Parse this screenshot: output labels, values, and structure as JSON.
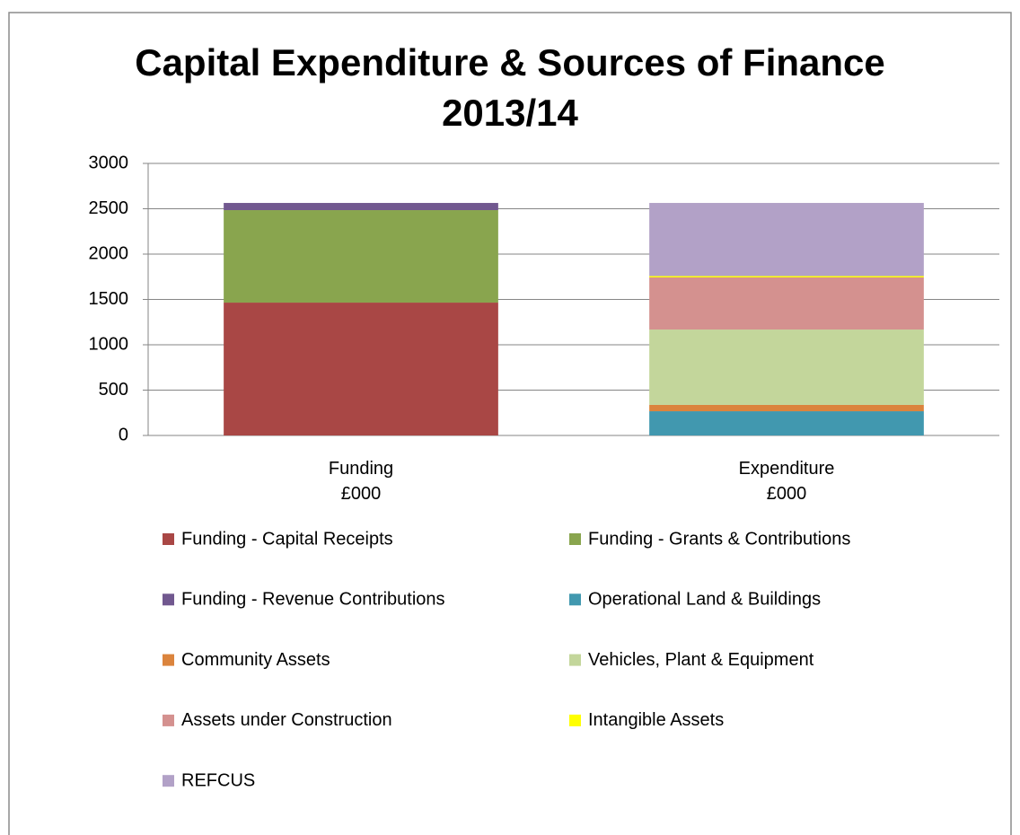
{
  "chart_data": {
    "type": "stacked_bar",
    "title": "Capital Expenditure & Sources of Finance\n2013/14",
    "categories": [
      "Funding\n£000",
      "Expenditure\n£000"
    ],
    "series": [
      {
        "name": "Funding - Capital Receipts",
        "color": "#a94745",
        "values": [
          1465,
          null
        ]
      },
      {
        "name": "Funding - Grants & Contributions",
        "color": "#89a54e",
        "values": [
          1020,
          null
        ]
      },
      {
        "name": "Funding - Revenue Contributions",
        "color": "#71588f",
        "values": [
          79,
          null
        ]
      },
      {
        "name": "Operational Land & Buildings",
        "color": "#4198af",
        "values": [
          null,
          267
        ]
      },
      {
        "name": "Community Assets",
        "color": "#db843d",
        "values": [
          null,
          70
        ]
      },
      {
        "name": "Vehicles, Plant & Equipment",
        "color": "#c3d69b",
        "values": [
          null,
          831
        ]
      },
      {
        "name": "Assets under Construction",
        "color": "#d4918f",
        "values": [
          null,
          575
        ]
      },
      {
        "name": "Intangible Assets",
        "color": "#ffff00",
        "values": [
          null,
          15
        ]
      },
      {
        "name": "REFCUS",
        "color": "#b2a1c7",
        "values": [
          null,
          806
        ]
      }
    ],
    "ylim": [
      0,
      3000
    ],
    "yticks": [
      0,
      500,
      1000,
      1500,
      2000,
      2500,
      3000
    ],
    "grid": true,
    "legend": "bottom"
  }
}
